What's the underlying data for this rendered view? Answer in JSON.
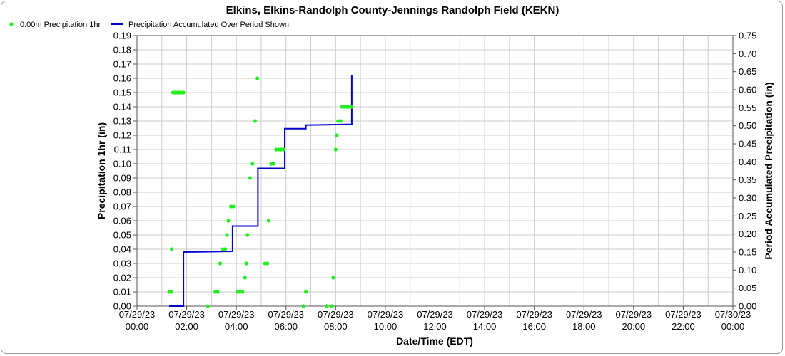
{
  "chart_data": {
    "type": "scatter+line",
    "title": "Elkins, Elkins-Randolph County-Jennings Randolph Field (KEKN)",
    "xlabel": "Date/Time (EDT)",
    "ylabel_left": "Precipitation 1hr (in)",
    "ylabel_right": "Period Accumulated Precipitation (in)",
    "x_range_hours": [
      0,
      24
    ],
    "y_left_range": [
      0,
      0.19
    ],
    "y_right_range": [
      0,
      0.75
    ],
    "grid": true,
    "legend_position": "top-left",
    "x_ticks": [
      {
        "date": "07/29/23",
        "time": "00:00",
        "hour": 0
      },
      {
        "date": "07/29/23",
        "time": "02:00",
        "hour": 2
      },
      {
        "date": "07/29/23",
        "time": "04:00",
        "hour": 4
      },
      {
        "date": "07/29/23",
        "time": "06:00",
        "hour": 6
      },
      {
        "date": "07/29/23",
        "time": "08:00",
        "hour": 8
      },
      {
        "date": "07/29/23",
        "time": "10:00",
        "hour": 10
      },
      {
        "date": "07/29/23",
        "time": "12:00",
        "hour": 12
      },
      {
        "date": "07/29/23",
        "time": "14:00",
        "hour": 14
      },
      {
        "date": "07/29/23",
        "time": "16:00",
        "hour": 16
      },
      {
        "date": "07/29/23",
        "time": "18:00",
        "hour": 18
      },
      {
        "date": "07/29/23",
        "time": "20:00",
        "hour": 20
      },
      {
        "date": "07/29/23",
        "time": "22:00",
        "hour": 22
      },
      {
        "date": "07/30/23",
        "time": "00:00",
        "hour": 24
      }
    ],
    "y_left_ticks": [
      "0.00",
      "0.01",
      "0.02",
      "0.03",
      "0.04",
      "0.05",
      "0.06",
      "0.07",
      "0.08",
      "0.09",
      "0.10",
      "0.11",
      "0.12",
      "0.13",
      "0.14",
      "0.15",
      "0.16",
      "0.17",
      "0.18",
      "0.19"
    ],
    "y_right_ticks": [
      "0.00",
      "0.05",
      "0.10",
      "0.15",
      "0.20",
      "0.25",
      "0.30",
      "0.35",
      "0.40",
      "0.45",
      "0.50",
      "0.55",
      "0.60",
      "0.65",
      "0.70",
      "0.75"
    ],
    "series": [
      {
        "name": "0.00m Precipitation 1hr",
        "axis": "left",
        "type": "scatter",
        "color": "#22ee22",
        "points": [
          [
            1.3,
            0.01
          ],
          [
            1.38,
            0.01
          ],
          [
            1.4,
            0.04
          ],
          [
            1.45,
            0.15
          ],
          [
            1.53,
            0.15
          ],
          [
            1.62,
            0.15
          ],
          [
            1.7,
            0.15
          ],
          [
            1.78,
            0.15
          ],
          [
            1.87,
            0.15
          ],
          [
            2.85,
            0.0
          ],
          [
            3.15,
            0.01
          ],
          [
            3.25,
            0.01
          ],
          [
            3.35,
            0.03
          ],
          [
            3.45,
            0.04
          ],
          [
            3.55,
            0.04
          ],
          [
            3.62,
            0.05
          ],
          [
            3.68,
            0.06
          ],
          [
            3.78,
            0.07
          ],
          [
            3.88,
            0.07
          ],
          [
            4.05,
            0.01
          ],
          [
            4.15,
            0.01
          ],
          [
            4.25,
            0.01
          ],
          [
            4.35,
            0.02
          ],
          [
            4.4,
            0.03
          ],
          [
            4.45,
            0.05
          ],
          [
            4.55,
            0.09
          ],
          [
            4.65,
            0.1
          ],
          [
            4.75,
            0.13
          ],
          [
            4.85,
            0.16
          ],
          [
            5.15,
            0.03
          ],
          [
            5.25,
            0.03
          ],
          [
            5.3,
            0.06
          ],
          [
            5.4,
            0.1
          ],
          [
            5.5,
            0.1
          ],
          [
            5.6,
            0.11
          ],
          [
            5.7,
            0.11
          ],
          [
            5.8,
            0.11
          ],
          [
            5.9,
            0.11
          ],
          [
            6.7,
            0.0
          ],
          [
            6.8,
            0.01
          ],
          [
            7.65,
            0.0
          ],
          [
            7.85,
            0.0
          ],
          [
            7.9,
            0.02
          ],
          [
            8.0,
            0.11
          ],
          [
            8.05,
            0.12
          ],
          [
            8.1,
            0.13
          ],
          [
            8.2,
            0.13
          ],
          [
            8.25,
            0.14
          ],
          [
            8.35,
            0.14
          ],
          [
            8.45,
            0.14
          ],
          [
            8.55,
            0.14
          ],
          [
            8.65,
            0.14
          ]
        ]
      },
      {
        "name": "Precipitation Accumulated Over Period Shown",
        "axis": "right",
        "type": "line",
        "color": "#0000cc",
        "points": [
          [
            1.3,
            0.0
          ],
          [
            1.87,
            0.0
          ],
          [
            1.87,
            0.15
          ],
          [
            3.85,
            0.152
          ],
          [
            3.85,
            0.222
          ],
          [
            4.87,
            0.222
          ],
          [
            4.87,
            0.382
          ],
          [
            5.95,
            0.382
          ],
          [
            5.95,
            0.492
          ],
          [
            6.8,
            0.492
          ],
          [
            6.8,
            0.502
          ],
          [
            8.65,
            0.504
          ],
          [
            8.65,
            0.64
          ]
        ]
      }
    ]
  }
}
